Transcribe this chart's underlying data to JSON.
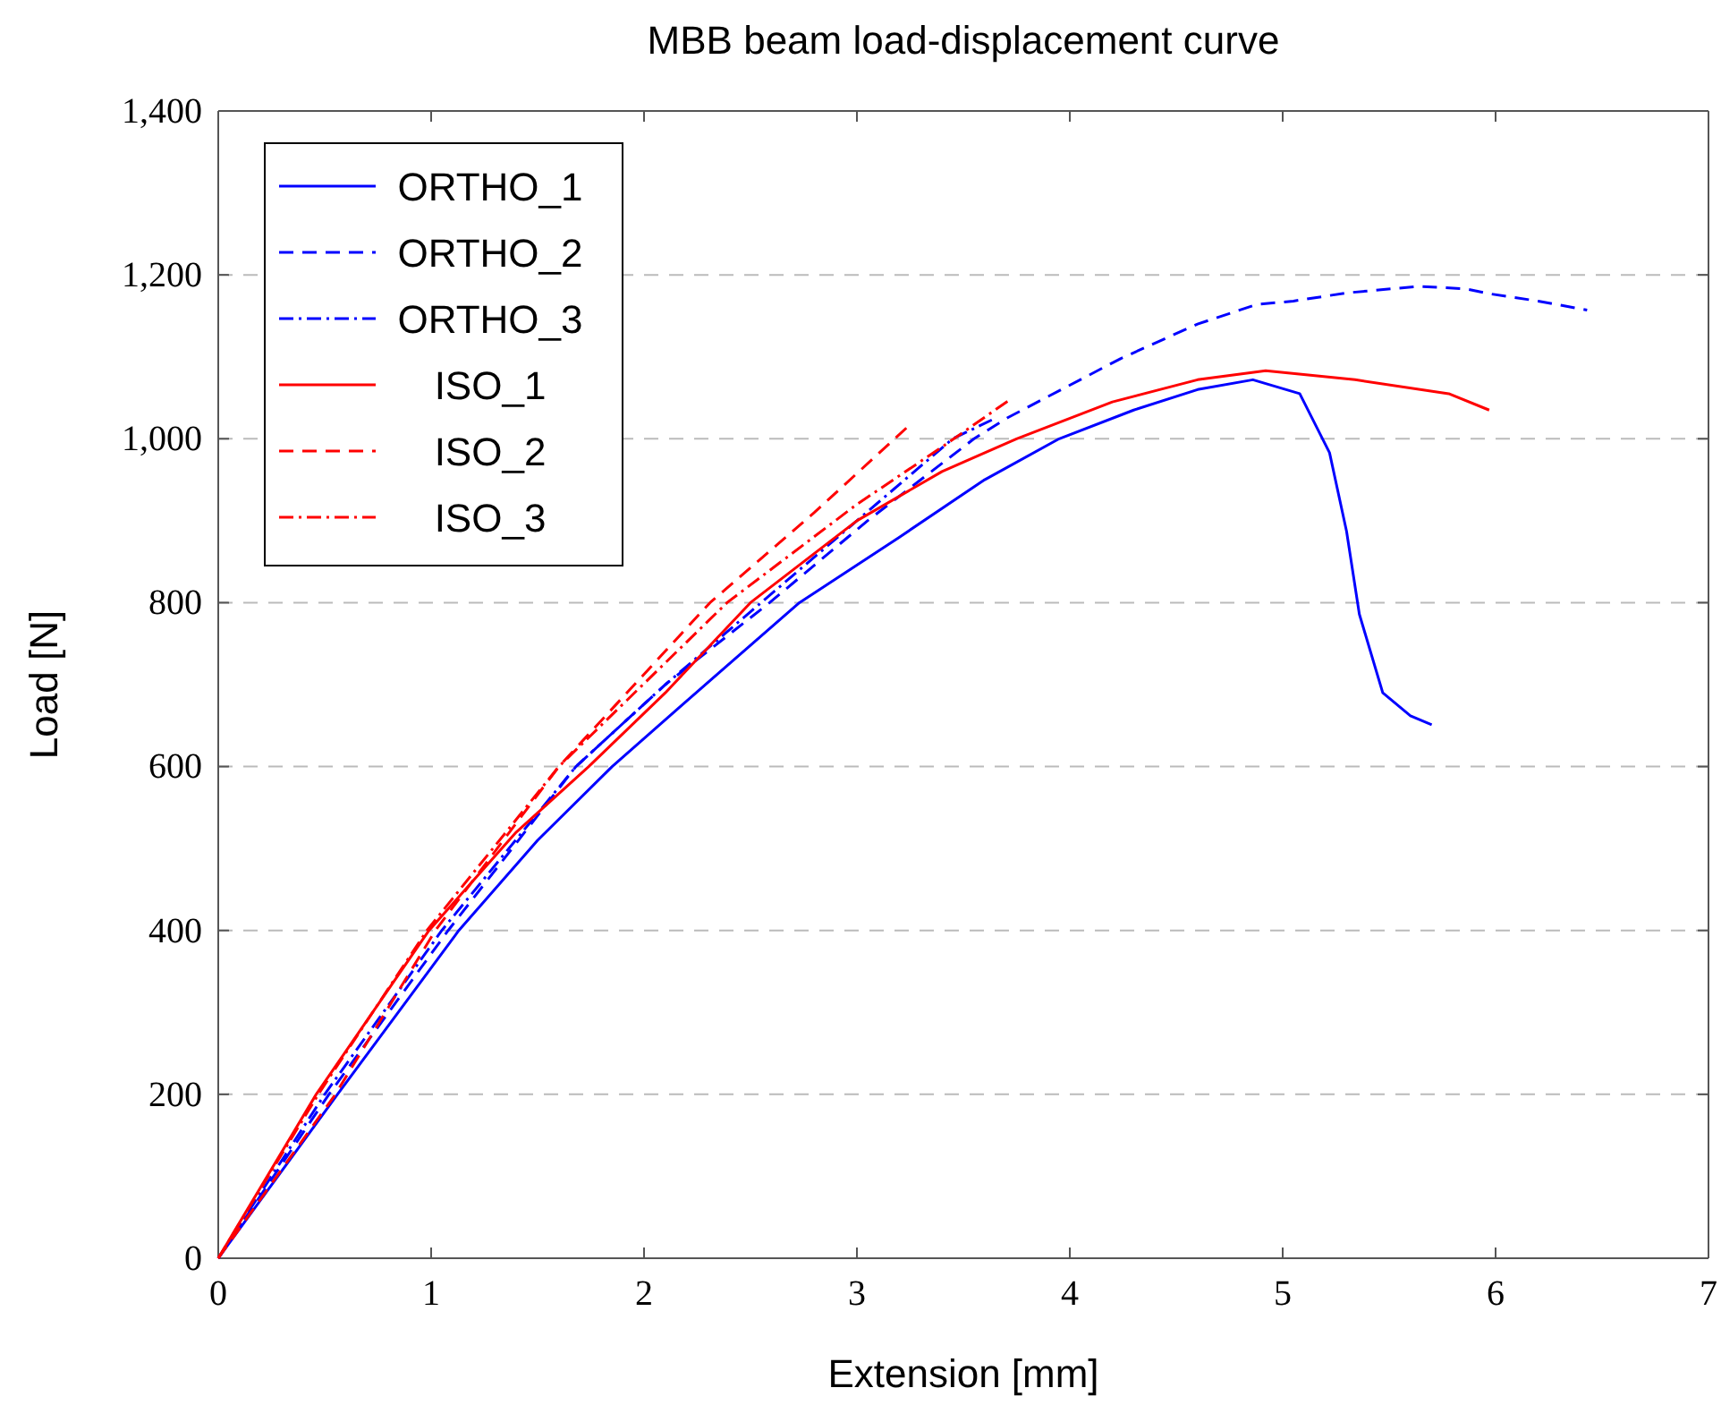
{
  "chart_data": {
    "type": "line",
    "title": "MBB beam load-displacement curve",
    "xlabel": "Extension [mm]",
    "ylabel": "Load [N]",
    "xlim": [
      0,
      7
    ],
    "xticks": [
      0,
      1,
      2,
      3,
      4,
      5,
      6,
      7
    ],
    "ylim": [
      0,
      1400
    ],
    "yticks": [
      0,
      200,
      400,
      600,
      800,
      {
        "value": 1000,
        "label": "1,000"
      },
      {
        "value": 1200,
        "label": "1,200"
      },
      {
        "value": 1400,
        "label": "1,400"
      }
    ],
    "grid": "y",
    "legend": "top left",
    "marker": "none",
    "series": [
      {
        "name": "ORTHO_1",
        "color": "#0000ff",
        "line_style": "solid",
        "x": [
          0,
          0.56,
          1.13,
          1.5,
          1.85,
          2.2,
          2.73,
          3.2,
          3.6,
          3.95,
          4.3,
          4.6,
          4.86,
          5.08,
          5.22,
          5.3,
          5.36,
          5.47,
          5.6,
          5.7
        ],
        "values": [
          0,
          200,
          400,
          510,
          600,
          680,
          800,
          880,
          950,
          1000,
          1035,
          1060,
          1072,
          1055,
          983,
          887,
          786,
          690,
          662,
          651
        ]
      },
      {
        "name": "ORTHO_2",
        "color": "#0000ff",
        "line_style": "dashed",
        "x": [
          0,
          0.52,
          1.08,
          1.68,
          2.1,
          2.59,
          3.05,
          3.55,
          3.71,
          4.24,
          4.6,
          4.88,
          5.05,
          5.3,
          5.64,
          5.86,
          5.97,
          6.2,
          6.43
        ],
        "values": [
          0,
          200,
          400,
          600,
          700,
          800,
          900,
          1000,
          1026,
          1098,
          1140,
          1164,
          1168,
          1178,
          1186,
          1183,
          1177,
          1168,
          1157
        ]
      },
      {
        "name": "ORTHO_3",
        "color": "#0000ff",
        "line_style": "dashdot",
        "x": [
          0,
          0.5,
          1.05,
          1.68,
          2.1,
          2.55,
          3.0,
          3.45,
          3.65
        ],
        "values": [
          0,
          200,
          400,
          600,
          700,
          800,
          900,
          1000,
          1025
        ]
      },
      {
        "name": "ISO_1",
        "color": "#ff0000",
        "line_style": "solid",
        "x": [
          0,
          0.46,
          0.99,
          1.4,
          1.74,
          2.1,
          2.5,
          3.0,
          3.4,
          3.75,
          4.2,
          4.6,
          4.92,
          5.34,
          5.78,
          5.97
        ],
        "values": [
          0,
          200,
          400,
          520,
          600,
          690,
          800,
          900,
          960,
          1000,
          1045,
          1072,
          1083,
          1072,
          1055,
          1035
        ]
      },
      {
        "name": "ISO_2",
        "color": "#ff0000",
        "line_style": "dashed",
        "x": [
          0,
          0.55,
          1.02,
          1.6,
          2.31,
          2.8,
          3.24
        ],
        "values": [
          0,
          200,
          400,
          600,
          800,
          910,
          1015
        ]
      },
      {
        "name": "ISO_3",
        "color": "#ff0000",
        "line_style": "dashdot",
        "x": [
          0,
          0.47,
          0.98,
          1.6,
          2.39,
          3.0,
          3.4,
          3.72
        ],
        "values": [
          0,
          200,
          400,
          600,
          800,
          920,
          990,
          1048
        ]
      }
    ]
  }
}
